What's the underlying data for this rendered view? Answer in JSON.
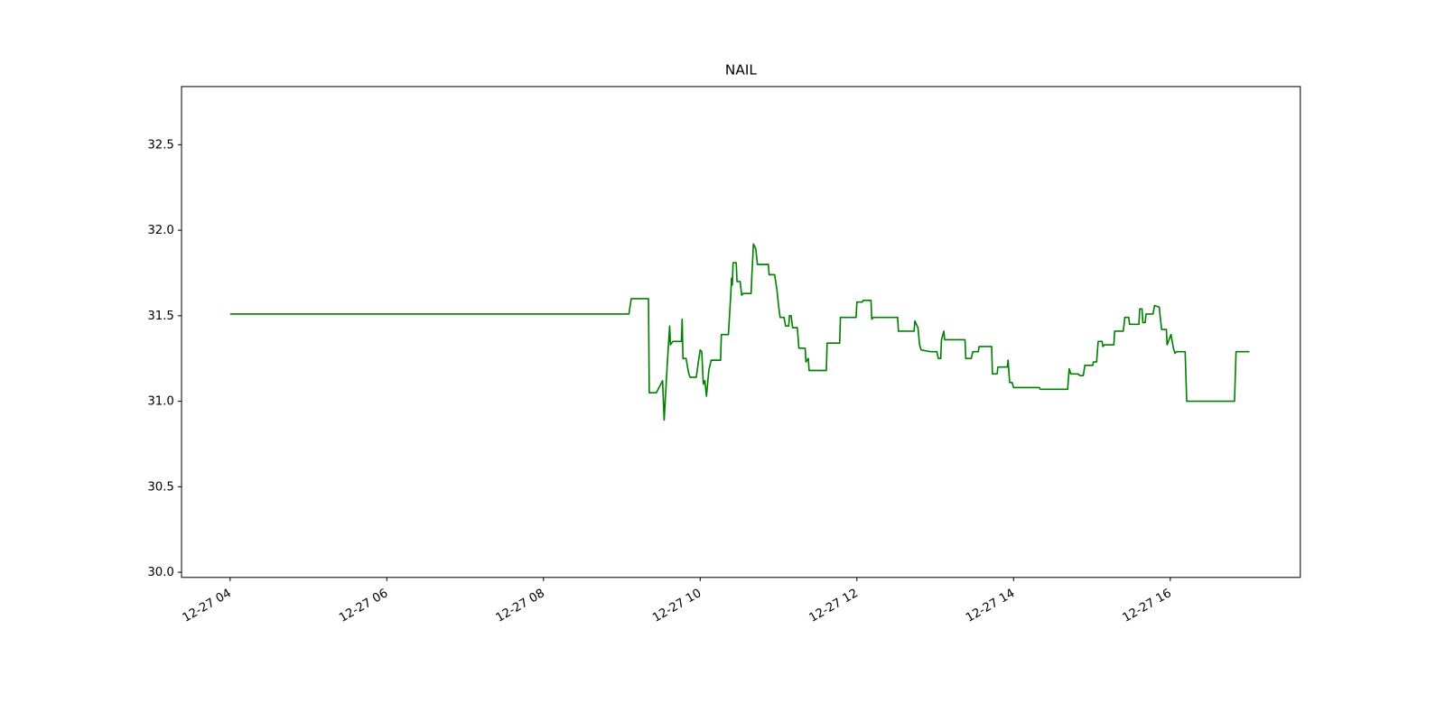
{
  "chart_data": {
    "type": "line",
    "title": "NAIL",
    "x": [
      4.0,
      9.09,
      9.12,
      9.34,
      9.35,
      9.44,
      9.52,
      9.54,
      9.58,
      9.61,
      9.62,
      9.65,
      9.76,
      9.77,
      9.78,
      9.82,
      9.85,
      9.87,
      9.95,
      9.98,
      10.0,
      10.02,
      10.04,
      10.06,
      10.08,
      10.11,
      10.14,
      10.26,
      10.27,
      10.36,
      10.39,
      10.4,
      10.41,
      10.42,
      10.46,
      10.47,
      10.51,
      10.53,
      10.55,
      10.65,
      10.66,
      10.68,
      10.71,
      10.73,
      10.87,
      10.88,
      10.95,
      10.98,
      11.0,
      11.02,
      11.07,
      11.09,
      11.13,
      11.14,
      11.16,
      11.18,
      11.24,
      11.26,
      11.34,
      11.35,
      11.38,
      11.39,
      11.61,
      11.62,
      11.78,
      11.79,
      11.99,
      12.0,
      12.07,
      12.08,
      12.18,
      12.19,
      12.21,
      12.52,
      12.53,
      12.73,
      12.74,
      12.78,
      12.8,
      12.82,
      12.94,
      13.02,
      13.04,
      13.07,
      13.08,
      13.11,
      13.12,
      13.38,
      13.39,
      13.46,
      13.48,
      13.55,
      13.56,
      13.72,
      13.73,
      13.79,
      13.8,
      13.92,
      13.93,
      13.95,
      13.98,
      14.0,
      14.33,
      14.34,
      14.69,
      14.71,
      14.73,
      14.82,
      14.85,
      14.89,
      14.91,
      15.01,
      15.02,
      15.06,
      15.08,
      15.13,
      15.14,
      15.16,
      15.28,
      15.29,
      15.4,
      15.42,
      15.47,
      15.48,
      15.6,
      15.61,
      15.64,
      15.65,
      15.68,
      15.69,
      15.78,
      15.8,
      15.86,
      15.87,
      15.89,
      15.95,
      15.96,
      16.01,
      16.04,
      16.06,
      16.08,
      16.19,
      16.21,
      16.82,
      16.84,
      17.01
    ],
    "series": [
      {
        "color": "#008000",
        "values": [
          31.51,
          31.51,
          31.6,
          31.6,
          31.05,
          31.05,
          31.12,
          30.89,
          31.22,
          31.44,
          31.33,
          31.35,
          31.35,
          31.48,
          31.25,
          31.25,
          31.17,
          31.14,
          31.14,
          31.24,
          31.3,
          31.29,
          31.1,
          31.12,
          31.03,
          31.18,
          31.24,
          31.24,
          31.39,
          31.39,
          31.62,
          31.72,
          31.68,
          31.81,
          31.81,
          31.7,
          31.7,
          31.62,
          31.63,
          31.63,
          31.74,
          31.92,
          31.89,
          31.8,
          31.8,
          31.74,
          31.74,
          31.65,
          31.56,
          31.49,
          31.49,
          31.44,
          31.44,
          31.5,
          31.5,
          31.43,
          31.43,
          31.31,
          31.31,
          31.23,
          31.25,
          31.18,
          31.18,
          31.34,
          31.34,
          31.49,
          31.49,
          31.58,
          31.58,
          31.59,
          31.59,
          31.48,
          31.49,
          31.49,
          31.41,
          31.41,
          31.47,
          31.43,
          31.33,
          31.3,
          31.29,
          31.29,
          31.25,
          31.25,
          31.36,
          31.41,
          31.36,
          31.36,
          31.25,
          31.25,
          31.29,
          31.29,
          31.32,
          31.32,
          31.16,
          31.16,
          31.2,
          31.2,
          31.24,
          31.11,
          31.11,
          31.08,
          31.08,
          31.07,
          31.07,
          31.19,
          31.16,
          31.16,
          31.15,
          31.15,
          31.21,
          31.21,
          31.23,
          31.23,
          31.35,
          31.35,
          31.32,
          31.33,
          31.33,
          31.41,
          31.41,
          31.49,
          31.49,
          31.45,
          31.45,
          31.54,
          31.54,
          31.46,
          31.46,
          31.51,
          31.51,
          31.56,
          31.55,
          31.5,
          31.42,
          31.42,
          31.33,
          31.39,
          31.31,
          31.28,
          31.29,
          31.29,
          31.0,
          31.0,
          31.29,
          31.29
        ]
      }
    ],
    "xlim": [
      3.38,
      17.66
    ],
    "xticks": [
      {
        "value": 4,
        "label": "12-27 04"
      },
      {
        "value": 6,
        "label": "12-27 06"
      },
      {
        "value": 8,
        "label": "12-27 08"
      },
      {
        "value": 10,
        "label": "12-27 10"
      },
      {
        "value": 12,
        "label": "12-27 12"
      },
      {
        "value": 14,
        "label": "12-27 14"
      },
      {
        "value": 16,
        "label": "12-27 16"
      }
    ],
    "ylim": [
      29.97,
      32.84
    ],
    "yticks": [
      {
        "value": 30,
        "label": "30.0"
      },
      30.5,
      {
        "value": 31,
        "label": "31.0"
      },
      31.5,
      {
        "value": 32,
        "label": "32.0"
      },
      32.5
    ]
  }
}
